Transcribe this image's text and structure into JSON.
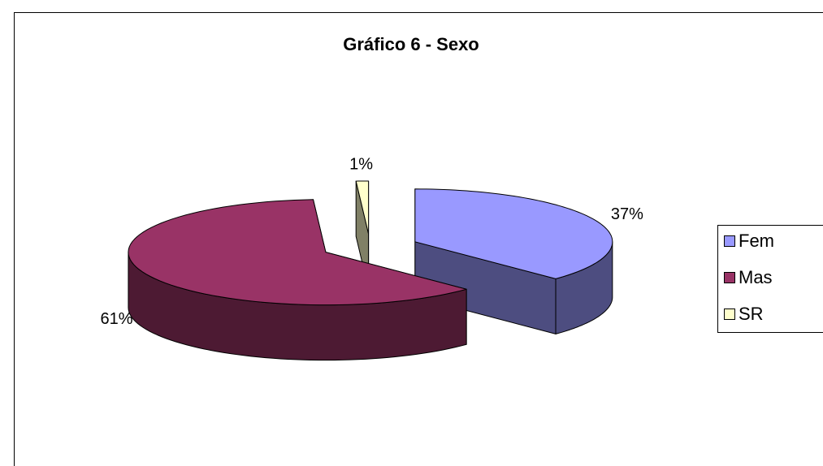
{
  "chart_data": {
    "type": "pie3d",
    "title": "Gráfico 6 - Sexo",
    "categories": [
      "Fem",
      "Mas",
      "SR"
    ],
    "values": [
      37,
      61,
      1
    ],
    "value_labels": [
      "37%",
      "61%",
      "1%"
    ],
    "colors": [
      "#9999ff",
      "#993366",
      "#ffffcc"
    ],
    "legend": "right"
  }
}
